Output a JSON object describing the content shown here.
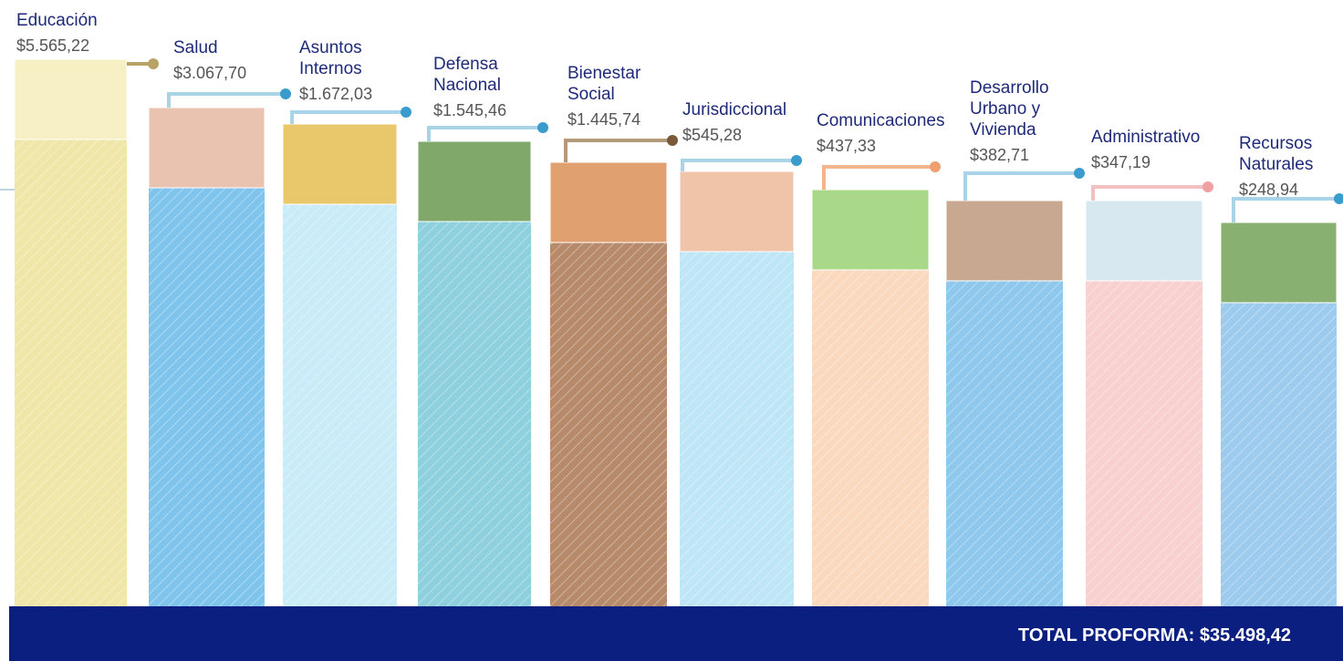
{
  "items": [
    {
      "label_lines": [
        "Educación"
      ],
      "amount": "$5.565,22"
    },
    {
      "label_lines": [
        "Salud"
      ],
      "amount": "$3.067,70"
    },
    {
      "label_lines": [
        "Asuntos",
        "Internos"
      ],
      "amount": "$1.672,03"
    },
    {
      "label_lines": [
        "Defensa",
        "Nacional"
      ],
      "amount": "$1.545,46"
    },
    {
      "label_lines": [
        "Bienestar",
        "Social"
      ],
      "amount": "$1.445,74"
    },
    {
      "label_lines": [
        "Jurisdiccional"
      ],
      "amount": "$545,28"
    },
    {
      "label_lines": [
        "Comunicaciones"
      ],
      "amount": "$437,33"
    },
    {
      "label_lines": [
        "Desarrollo",
        "Urbano y",
        "Vivienda"
      ],
      "amount": "$382,71"
    },
    {
      "label_lines": [
        "Administrativo"
      ],
      "amount": "$347,19"
    },
    {
      "label_lines": [
        "Recursos",
        "Naturales"
      ],
      "amount": "$248,94"
    }
  ],
  "footer": {
    "total": "TOTAL PROFORMA: $35.498,42"
  }
}
